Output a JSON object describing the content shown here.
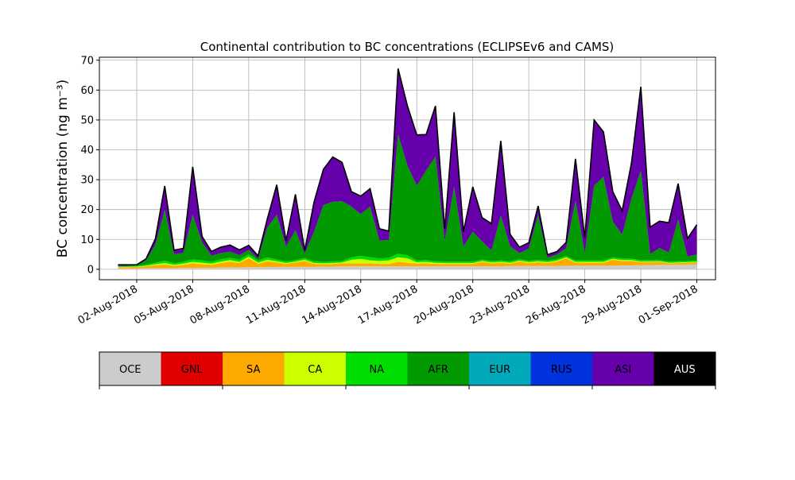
{
  "chart_data": {
    "type": "area",
    "stacked": true,
    "title": "Continental contribution to BC concentrations (ECLIPSEv6 and CAMS)",
    "xlabel": "",
    "ylabel": "BC concentration (ng m⁻³)",
    "x_range": [
      "2018-07-31",
      "2018-09-02"
    ],
    "ylim": [
      -3.5,
      71
    ],
    "yticks": [
      0,
      10,
      20,
      30,
      40,
      50,
      60,
      70
    ],
    "x_ticks": [
      {
        "label": "02-Aug-2018",
        "day": 2
      },
      {
        "label": "05-Aug-2018",
        "day": 5
      },
      {
        "label": "08-Aug-2018",
        "day": 8
      },
      {
        "label": "11-Aug-2018",
        "day": 11
      },
      {
        "label": "14-Aug-2018",
        "day": 14
      },
      {
        "label": "17-Aug-2018",
        "day": 17
      },
      {
        "label": "20-Aug-2018",
        "day": 20
      },
      {
        "label": "23-Aug-2018",
        "day": 23
      },
      {
        "label": "26-Aug-2018",
        "day": 26
      },
      {
        "label": "29-Aug-2018",
        "day": 29
      },
      {
        "label": "01-Sep-2018",
        "day": 32
      }
    ],
    "grid": true,
    "total_line_color": "#000000",
    "x_days": [
      1.0,
      1.5,
      2.0,
      2.5,
      3.0,
      3.5,
      4.0,
      4.5,
      5.0,
      5.5,
      6.0,
      6.5,
      7.0,
      7.5,
      8.0,
      8.5,
      9.0,
      9.5,
      10.0,
      10.5,
      11.0,
      11.5,
      12.0,
      12.5,
      13.0,
      13.5,
      14.0,
      14.5,
      15.0,
      15.5,
      16.0,
      16.5,
      17.0,
      17.5,
      18.0,
      18.5,
      19.0,
      19.5,
      20.0,
      20.5,
      21.0,
      21.5,
      22.0,
      22.5,
      23.0,
      23.5,
      24.0,
      24.5,
      25.0,
      25.5,
      26.0,
      26.5,
      27.0,
      27.5,
      28.0,
      28.5,
      29.0,
      29.5,
      30.0,
      30.5,
      31.0,
      31.5,
      32.0
    ],
    "series": [
      {
        "name": "OCE",
        "color": "#cccccc",
        "values": [
          0.3,
          0.3,
          0.3,
          0.4,
          0.4,
          0.4,
          0.4,
          0.5,
          0.5,
          0.5,
          0.5,
          0.6,
          0.6,
          0.6,
          0.7,
          0.7,
          0.7,
          0.8,
          0.8,
          0.8,
          0.8,
          0.8,
          0.9,
          0.9,
          1.0,
          1.0,
          1.0,
          1.0,
          1.0,
          1.0,
          1.0,
          1.0,
          1.0,
          1.0,
          1.0,
          1.0,
          1.0,
          1.0,
          1.0,
          1.0,
          1.0,
          1.0,
          1.1,
          1.1,
          1.1,
          1.1,
          1.1,
          1.1,
          1.2,
          1.2,
          1.2,
          1.2,
          1.2,
          1.2,
          1.3,
          1.3,
          1.4,
          1.4,
          1.5,
          1.5,
          1.5,
          1.6,
          1.6
        ]
      },
      {
        "name": "GNL",
        "color": "#e00000",
        "values": [
          0,
          0,
          0,
          0,
          0,
          0,
          0,
          0,
          0,
          0,
          0,
          0,
          0,
          0,
          0,
          0,
          0,
          0,
          0,
          0,
          0,
          0,
          0,
          0,
          0,
          0,
          0,
          0,
          0,
          0,
          0,
          0,
          0,
          0,
          0,
          0,
          0,
          0,
          0,
          0,
          0,
          0,
          0,
          0,
          0,
          0,
          0,
          0,
          0,
          0,
          0,
          0,
          0,
          0,
          0,
          0,
          0,
          0,
          0,
          0,
          0,
          0,
          0
        ]
      },
      {
        "name": "SA",
        "color": "#ffaa00",
        "values": [
          0.4,
          0.4,
          0.5,
          0.6,
          1.0,
          1.2,
          0.8,
          1.0,
          1.5,
          1.2,
          1.0,
          1.5,
          2.0,
          1.5,
          3.0,
          1.2,
          2.0,
          1.5,
          1.0,
          1.5,
          2.0,
          1.0,
          0.8,
          0.9,
          1.0,
          1.0,
          1.0,
          1.0,
          0.8,
          0.8,
          1.5,
          1.2,
          0.9,
          1.0,
          0.8,
          0.8,
          0.8,
          0.8,
          0.8,
          1.5,
          1.0,
          1.2,
          0.8,
          1.5,
          1.0,
          1.3,
          1.0,
          1.5,
          2.5,
          1.0,
          1.0,
          1.0,
          1.0,
          2.0,
          1.5,
          1.5,
          1.0,
          1.0,
          1.0,
          0.5,
          0.6,
          0.6,
          0.7
        ]
      },
      {
        "name": "CA",
        "color": "#ccff00",
        "values": [
          0.1,
          0.1,
          0.1,
          0.2,
          0.3,
          0.5,
          0.3,
          0.4,
          0.5,
          0.5,
          0.4,
          0.5,
          0.5,
          0.4,
          0.5,
          0.4,
          0.5,
          0.4,
          0.3,
          0.3,
          0.4,
          0.3,
          0.3,
          0.3,
          0.3,
          1.2,
          1.5,
          1.0,
          1.0,
          1.2,
          1.5,
          1.5,
          0.5,
          0.5,
          0.4,
          0.3,
          0.3,
          0.3,
          0.3,
          0.3,
          0.3,
          0.3,
          0.3,
          0.3,
          0.3,
          0.3,
          0.3,
          0.3,
          0.3,
          0.3,
          0.3,
          0.3,
          0.3,
          0.3,
          0.3,
          0.3,
          0.2,
          0.2,
          0.2,
          0.2,
          0.2,
          0.2,
          0.2
        ]
      },
      {
        "name": "NA",
        "color": "#00dd00",
        "values": [
          0.2,
          0.2,
          0.2,
          0.3,
          0.5,
          0.8,
          0.5,
          0.6,
          0.8,
          0.8,
          0.6,
          0.8,
          0.8,
          0.7,
          0.8,
          0.7,
          0.8,
          0.6,
          0.5,
          0.5,
          0.6,
          0.5,
          0.5,
          0.5,
          0.5,
          0.8,
          1.0,
          1.0,
          0.8,
          0.8,
          1.2,
          1.0,
          0.6,
          0.6,
          0.5,
          0.5,
          0.5,
          0.5,
          0.5,
          0.5,
          0.5,
          0.5,
          0.5,
          0.5,
          0.5,
          0.5,
          0.5,
          0.5,
          0.5,
          0.5,
          0.5,
          0.5,
          0.5,
          0.5,
          0.5,
          0.5,
          0.5,
          0.5,
          0.4,
          0.4,
          0.4,
          0.4,
          0.4
        ]
      },
      {
        "name": "AFR",
        "color": "#009900",
        "values": [
          0.1,
          0.2,
          0.3,
          1.5,
          6.0,
          17.0,
          3.0,
          3.0,
          15.0,
          6.0,
          2.0,
          2.0,
          2.0,
          1.5,
          1.5,
          0.5,
          10.0,
          15.0,
          5.0,
          10.0,
          1.5,
          10.0,
          19.0,
          20.0,
          20.0,
          17.0,
          14.0,
          17.0,
          6.0,
          6.0,
          40.0,
          30.0,
          25.0,
          30.0,
          35.0,
          7.0,
          25.0,
          5.0,
          10.0,
          6.0,
          3.5,
          15.0,
          5.0,
          2.0,
          4.0,
          15.0,
          1.0,
          1.5,
          2.5,
          20.0,
          2.5,
          25.0,
          28.0,
          12.0,
          8.0,
          20.0,
          30.0,
          2.0,
          4.0,
          3.0,
          14.0,
          1.5,
          2.0
        ]
      },
      {
        "name": "EUR",
        "color": "#00aabb",
        "values": [
          0,
          0,
          0,
          0,
          0,
          0,
          0,
          0,
          0,
          0,
          0,
          0,
          0,
          0,
          0,
          0,
          0,
          0,
          0,
          0,
          0,
          0,
          0,
          0,
          0,
          0,
          0,
          0,
          0,
          0,
          0,
          0,
          0,
          0,
          0,
          0,
          0,
          0,
          0,
          0,
          0,
          0,
          0,
          0,
          0,
          0,
          0,
          0,
          0,
          0,
          0,
          0,
          0,
          0,
          0,
          0,
          0,
          0,
          0,
          0,
          0,
          0,
          0
        ]
      },
      {
        "name": "RUS",
        "color": "#0033dd",
        "values": [
          0,
          0,
          0,
          0,
          0,
          0,
          0,
          0,
          0,
          0,
          0,
          0,
          0,
          0,
          0,
          0,
          0,
          0,
          0,
          0,
          0,
          0,
          0,
          0,
          0,
          0,
          0,
          0,
          0,
          0,
          0,
          0,
          0,
          0,
          0,
          0,
          0,
          0,
          0,
          0,
          0,
          0,
          0,
          0,
          0,
          0,
          0,
          0,
          0,
          0,
          0,
          0,
          0,
          0,
          0,
          0,
          0,
          0,
          0,
          0,
          0,
          0,
          0
        ]
      },
      {
        "name": "ASI",
        "color": "#6600aa",
        "values": [
          0.4,
          0.3,
          0.1,
          0.5,
          2.0,
          8.0,
          1.4,
          1.5,
          16.0,
          2.0,
          1.5,
          2.0,
          2.2,
          1.8,
          1.5,
          1.0,
          3.0,
          10.0,
          2.0,
          12.0,
          1.0,
          10.0,
          12.0,
          15.0,
          13.0,
          5.0,
          6.0,
          6.0,
          4.0,
          3.0,
          22.0,
          20.0,
          17.0,
          12.0,
          17.0,
          4.0,
          25.0,
          5.0,
          15.0,
          8.0,
          9.0,
          25.0,
          4.0,
          2.0,
          2.0,
          3.0,
          1.0,
          1.0,
          2.0,
          14.0,
          5.0,
          22.0,
          15.0,
          10.0,
          8.0,
          12.0,
          28.0,
          9.0,
          9.0,
          10.0,
          12.0,
          6.0,
          10.0
        ]
      },
      {
        "name": "AUS",
        "color": "#000000",
        "values": [
          0,
          0,
          0,
          0,
          0,
          0,
          0,
          0,
          0,
          0,
          0,
          0,
          0,
          0,
          0,
          0,
          0,
          0,
          0,
          0,
          0,
          0,
          0,
          0,
          0,
          0,
          0,
          0,
          0,
          0,
          0,
          0,
          0,
          0,
          0,
          0,
          0,
          0,
          0,
          0,
          0,
          0,
          0,
          0,
          0,
          0,
          0,
          0,
          0,
          0,
          0,
          0,
          0,
          0,
          0,
          0,
          0,
          0,
          0,
          0,
          0,
          0,
          0
        ]
      }
    ]
  },
  "legend": {
    "items": [
      {
        "label": "OCE",
        "color": "#cccccc"
      },
      {
        "label": "GNL",
        "color": "#e00000"
      },
      {
        "label": "SA",
        "color": "#ffaa00"
      },
      {
        "label": "CA",
        "color": "#ccff00"
      },
      {
        "label": "NA",
        "color": "#00dd00"
      },
      {
        "label": "AFR",
        "color": "#009900"
      },
      {
        "label": "EUR",
        "color": "#00aabb"
      },
      {
        "label": "RUS",
        "color": "#0033dd"
      },
      {
        "label": "ASI",
        "color": "#6600aa"
      },
      {
        "label": "AUS",
        "color": "#000000"
      }
    ],
    "text_color_on_dark": "#ffffff",
    "text_color_default": "#000000"
  }
}
